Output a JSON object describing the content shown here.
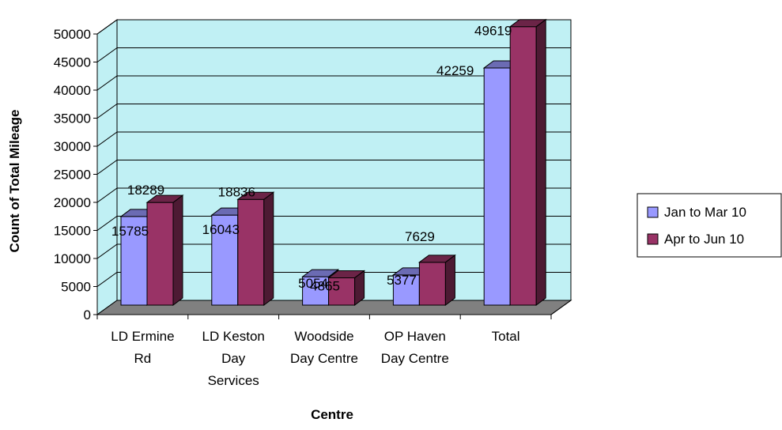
{
  "chart_data": {
    "type": "bar",
    "style": "3d-clustered-column",
    "title": "",
    "xlabel": "Centre",
    "ylabel": "Count of Total Mileage",
    "ylim": [
      0,
      50000
    ],
    "ytick_step": 5000,
    "grid": true,
    "legend_position": "right",
    "categories": [
      [
        "LD Ermine",
        "Rd"
      ],
      [
        "LD Keston",
        "Day",
        "Services"
      ],
      [
        "Woodside",
        "Day Centre"
      ],
      [
        "OP Haven",
        "Day Centre"
      ],
      [
        "Total"
      ]
    ],
    "series": [
      {
        "name": "Jan to Mar 10",
        "values": [
          15785,
          16043,
          5054,
          5377,
          42259
        ],
        "color": "#9999ff"
      },
      {
        "name": "Apr to Jun 10",
        "values": [
          18289,
          18836,
          4865,
          7629,
          49619
        ],
        "color": "#993366"
      }
    ],
    "colors": {
      "plot_back": "#c0f0f4",
      "floor": "#808080",
      "gridline": "#000000"
    }
  }
}
